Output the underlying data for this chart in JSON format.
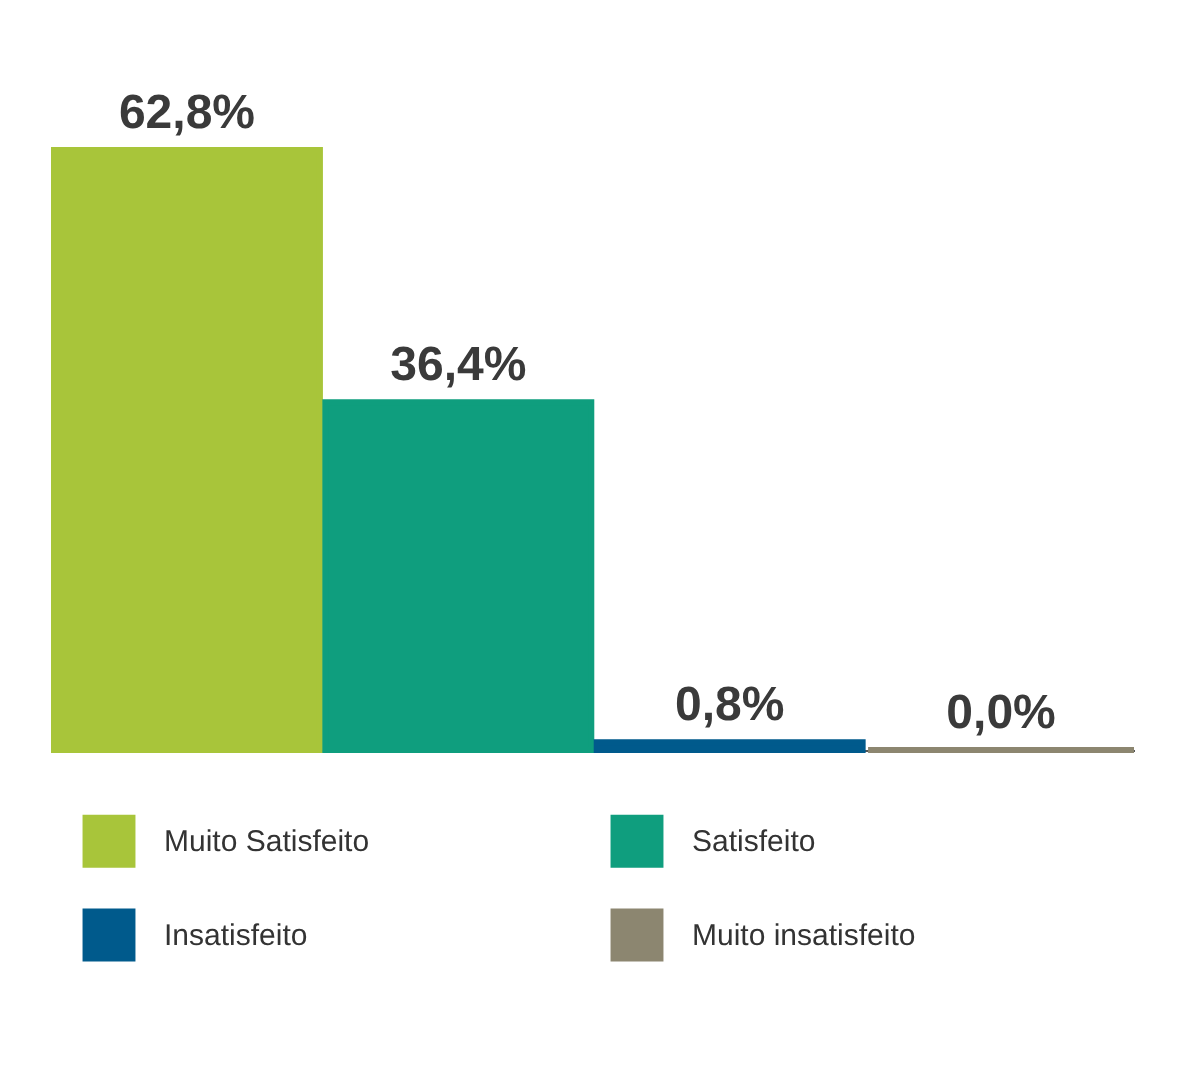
{
  "chart_data": {
    "type": "bar",
    "categories": [
      null
    ],
    "series": [
      {
        "name": "Muito Satisfeito",
        "color": "#a8c53a",
        "values": [
          62.8
        ],
        "value_labels": [
          "62,8%"
        ]
      },
      {
        "name": "Satisfeito",
        "color": "#0f9e7e",
        "values": [
          36.4
        ],
        "value_labels": [
          "36,4%"
        ]
      },
      {
        "name": "Insatisfeito",
        "color": "#005a8c",
        "values": [
          0.8
        ],
        "value_labels": [
          "0,8%"
        ]
      },
      {
        "name": "Muito insatisfeito",
        "color": "#8c8670",
        "values": [
          0.0
        ],
        "value_labels": [
          "0,0%"
        ]
      }
    ],
    "legend": "bottom"
  }
}
